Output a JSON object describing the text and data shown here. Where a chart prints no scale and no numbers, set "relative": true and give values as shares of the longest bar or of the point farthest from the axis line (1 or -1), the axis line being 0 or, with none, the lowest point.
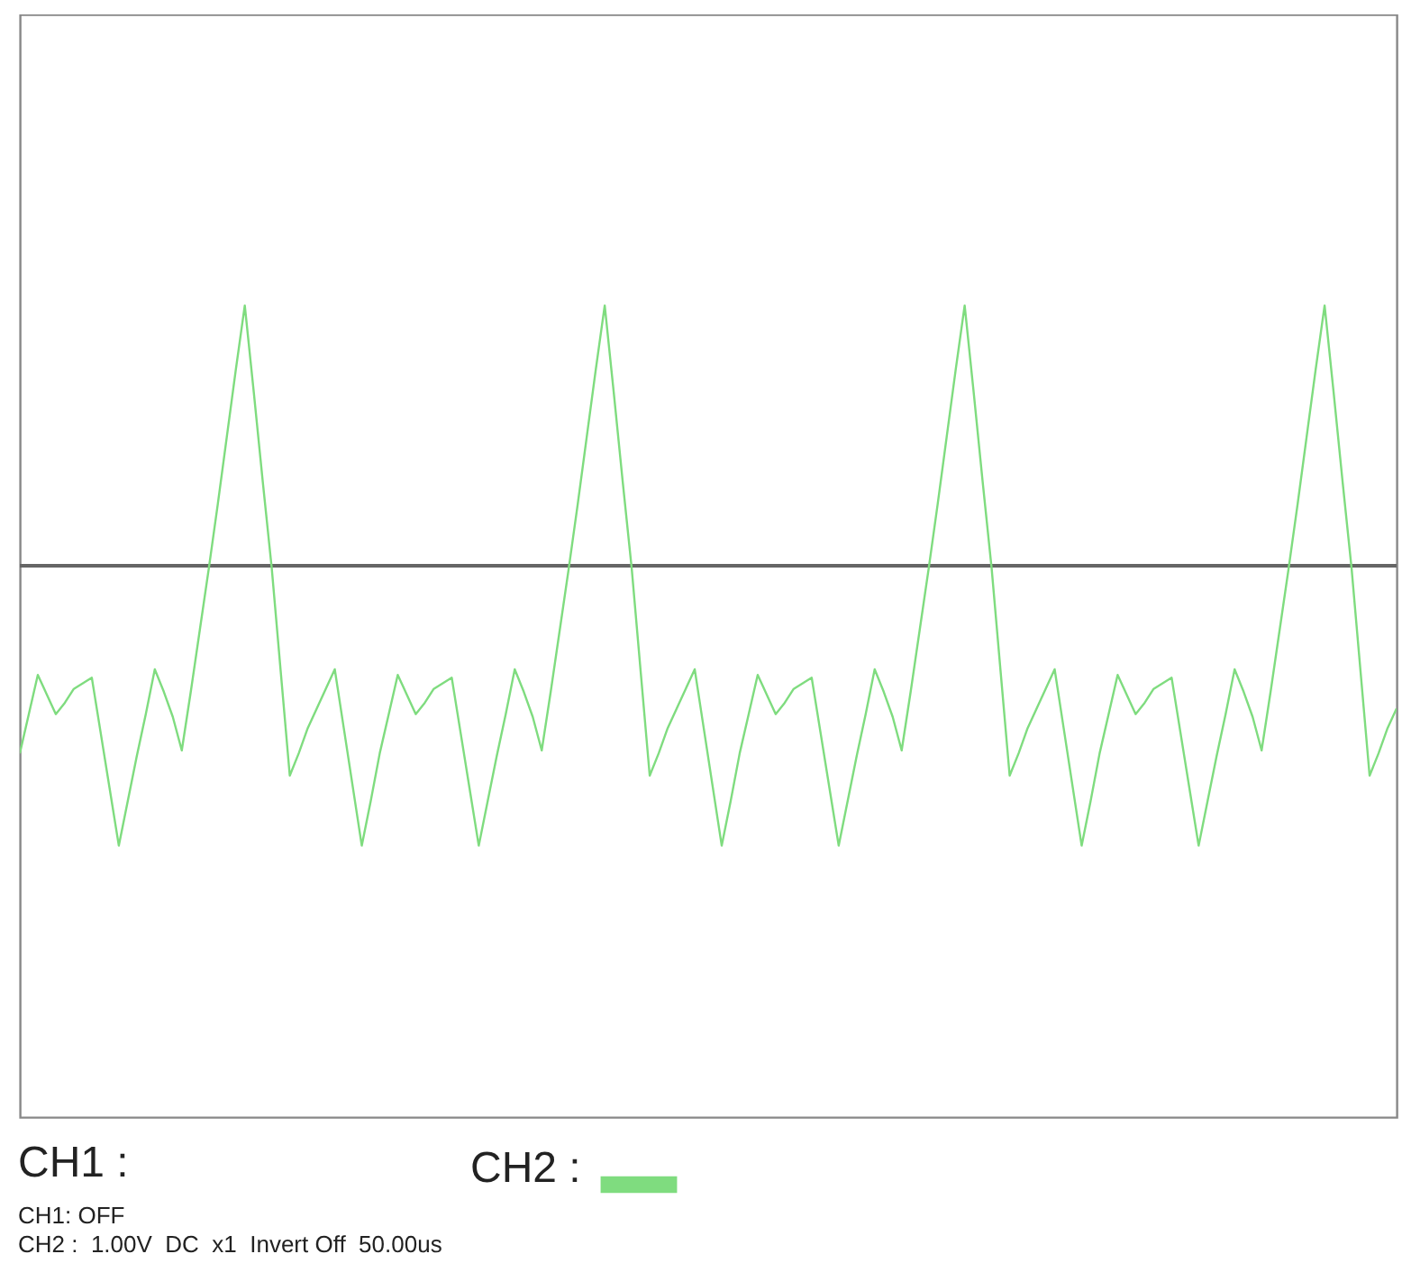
{
  "chart_data": {
    "type": "line",
    "relative": true,
    "legend": "bottom",
    "marker": "none",
    "line_style": "solid",
    "annotations": [
      "CH1 :",
      "CH1: OFF",
      "CH2 :  1.00V  DC  x1  Invert Off  50.00us"
    ],
    "categories": [
      null,
      null,
      null,
      null,
      null,
      null,
      null,
      null,
      null,
      null,
      null,
      null,
      null,
      null,
      null,
      null,
      null,
      null,
      null,
      null,
      null,
      null,
      null,
      null,
      null,
      null,
      null,
      null,
      null,
      null,
      null,
      null,
      null,
      null,
      null,
      null,
      null,
      null,
      null,
      null,
      null,
      null,
      null,
      null,
      null,
      null,
      null,
      null,
      null,
      null,
      null,
      null,
      null,
      null,
      null,
      null,
      null,
      null,
      null,
      null,
      null,
      null,
      null,
      null,
      null,
      null,
      null,
      null,
      null,
      null,
      null,
      null,
      null,
      null,
      null,
      null,
      null,
      null,
      null,
      null,
      null,
      null,
      null,
      null,
      null,
      null,
      null,
      null,
      null,
      null,
      null,
      null,
      null,
      null,
      null,
      null,
      null,
      null,
      null,
      null,
      null,
      null,
      null,
      null,
      null,
      null,
      null,
      null,
      null,
      null,
      null,
      null,
      null,
      null,
      null,
      null,
      null,
      null,
      null,
      null,
      null,
      null,
      null,
      null,
      null,
      null,
      null,
      null,
      null,
      null,
      null,
      null,
      null,
      null,
      null,
      null,
      null,
      null,
      null,
      null,
      null,
      null,
      null,
      null,
      null,
      null,
      null,
      null,
      null,
      null,
      null,
      null,
      null,
      null
    ],
    "series": [
      {
        "name": "CH2 :",
        "color": "#7fdc7f",
        "values": [
          -0.67,
          -0.53,
          -0.39,
          -0.46,
          -0.53,
          -0.49,
          -0.44,
          -0.42,
          -0.4,
          -0.6,
          -0.8,
          -1,
          -0.84,
          -0.68,
          -0.53,
          -0.37,
          -0.45,
          -0.54,
          -0.66,
          -0.45,
          -0.23,
          -0.01,
          0.22,
          0.46,
          0.7,
          0.93,
          0.62,
          0.3,
          -0.01,
          -0.38,
          -0.75,
          -0.67,
          -0.58,
          -0.51,
          -0.44,
          -0.37,
          -0.58,
          -0.79,
          -1,
          -0.84,
          -0.67,
          -0.53,
          -0.39,
          -0.46,
          -0.53,
          -0.49,
          -0.44,
          -0.42,
          -0.4,
          -0.6,
          -0.8,
          -1,
          -0.84,
          -0.68,
          -0.53,
          -0.37,
          -0.45,
          -0.54,
          -0.66,
          -0.45,
          -0.23,
          -0.01,
          0.22,
          0.46,
          0.7,
          0.93,
          0.62,
          0.3,
          -0.01,
          -0.38,
          -0.75,
          -0.67,
          -0.58,
          -0.51,
          -0.44,
          -0.37,
          -0.58,
          -0.79,
          -1,
          -0.84,
          -0.67,
          -0.53,
          -0.39,
          -0.46,
          -0.53,
          -0.49,
          -0.44,
          -0.42,
          -0.4,
          -0.6,
          -0.8,
          -1,
          -0.84,
          -0.68,
          -0.53,
          -0.37,
          -0.45,
          -0.54,
          -0.66,
          -0.45,
          -0.23,
          -0.01,
          0.22,
          0.46,
          0.7,
          0.93,
          0.62,
          0.3,
          -0.01,
          -0.38,
          -0.75,
          -0.67,
          -0.58,
          -0.51,
          -0.44,
          -0.37,
          -0.58,
          -0.79,
          -1,
          -0.84,
          -0.67,
          -0.53,
          -0.39,
          -0.46,
          -0.53,
          -0.49,
          -0.44,
          -0.42,
          -0.4,
          -0.6,
          -0.8,
          -1,
          -0.84,
          -0.68,
          -0.53,
          -0.37,
          -0.45,
          -0.54,
          -0.66,
          -0.45,
          -0.23,
          -0.01,
          0.22,
          0.46,
          0.7,
          0.93,
          0.62,
          0.3,
          -0.01,
          -0.38,
          -0.75,
          -0.67,
          -0.58,
          -0.51
        ]
      }
    ]
  }
}
